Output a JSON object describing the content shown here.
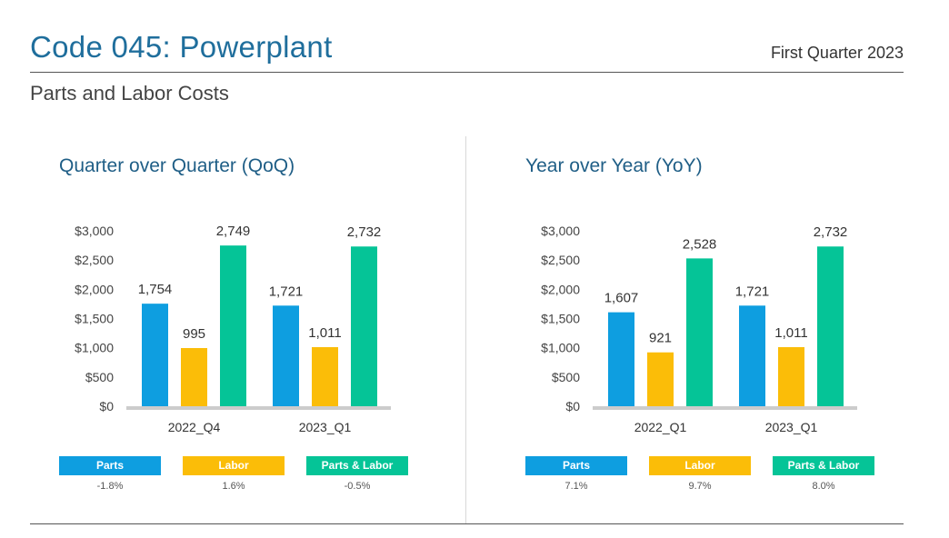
{
  "header": {
    "title": "Code 045: Powerplant",
    "period": "First Quarter 2023",
    "subtitle": "Parts and Labor Costs"
  },
  "colors": {
    "parts": "#0e9ee0",
    "labor": "#fbbd08",
    "parts_labor": "#05c497",
    "axis": "#cccccc"
  },
  "chart_data": [
    {
      "type": "bar",
      "title": "Quarter over Quarter (QoQ)",
      "categories": [
        "2022_Q4",
        "2023_Q1"
      ],
      "series": [
        {
          "name": "Parts",
          "values": [
            1754,
            1721
          ],
          "labels": [
            "1,754",
            "1,721"
          ]
        },
        {
          "name": "Labor",
          "values": [
            995,
            1011
          ],
          "labels": [
            "995",
            "1,011"
          ]
        },
        {
          "name": "Parts & Labor",
          "values": [
            2749,
            2732
          ],
          "labels": [
            "2,749",
            "2,732"
          ]
        }
      ],
      "yticks": [
        "$0",
        "$500",
        "$1,000",
        "$1,500",
        "$2,000",
        "$2,500",
        "$3,000"
      ],
      "ylim": [
        0,
        3000
      ],
      "changes": [
        "-1.8%",
        "1.6%",
        "-0.5%"
      ]
    },
    {
      "type": "bar",
      "title": "Year over Year (YoY)",
      "categories": [
        "2022_Q1",
        "2023_Q1"
      ],
      "series": [
        {
          "name": "Parts",
          "values": [
            1607,
            1721
          ],
          "labels": [
            "1,607",
            "1,721"
          ]
        },
        {
          "name": "Labor",
          "values": [
            921,
            1011
          ],
          "labels": [
            "921",
            "1,011"
          ]
        },
        {
          "name": "Parts & Labor",
          "values": [
            2528,
            2732
          ],
          "labels": [
            "2,528",
            "2,732"
          ]
        }
      ],
      "yticks": [
        "$0",
        "$500",
        "$1,000",
        "$1,500",
        "$2,000",
        "$2,500",
        "$3,000"
      ],
      "ylim": [
        0,
        3000
      ],
      "changes": [
        "7.1%",
        "9.7%",
        "8.0%"
      ]
    }
  ]
}
